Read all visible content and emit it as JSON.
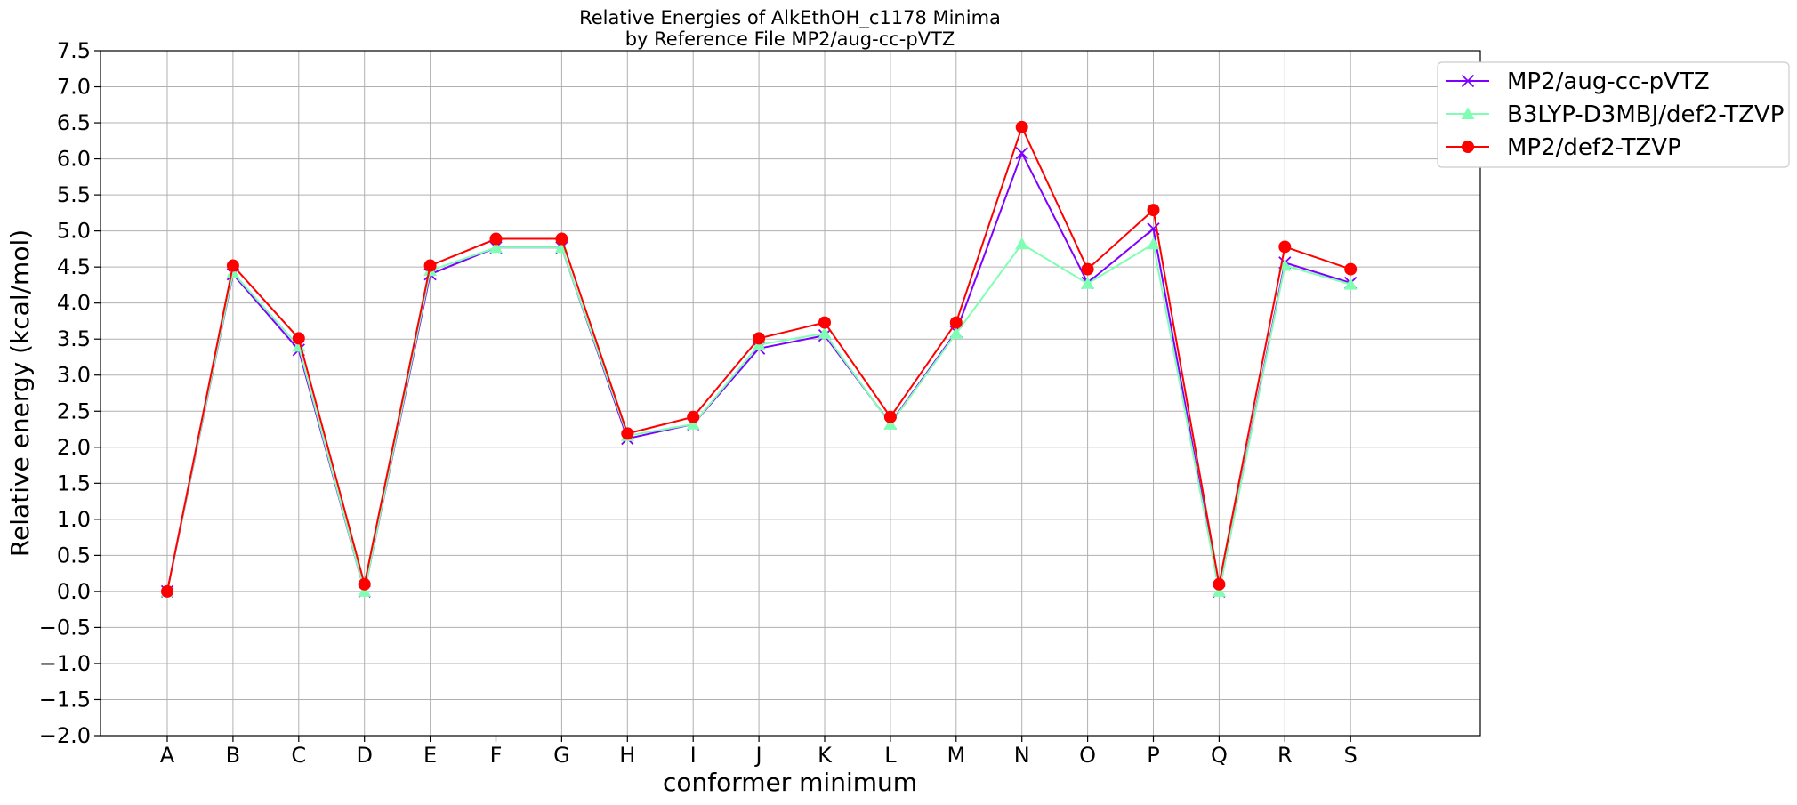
{
  "chart_data": {
    "type": "line",
    "title": "Relative Energies of AlkEthOH_c1178 Minima",
    "subtitle": "by Reference File MP2/aug-cc-pVTZ",
    "xlabel": "conformer minimum",
    "ylabel": "Relative energy (kcal/mol)",
    "categories": [
      "A",
      "B",
      "C",
      "D",
      "E",
      "F",
      "G",
      "H",
      "I",
      "J",
      "K",
      "L",
      "M",
      "N",
      "O",
      "P",
      "Q",
      "R",
      "S"
    ],
    "ylim": [
      -2.0,
      7.5
    ],
    "yticks": [
      "7.5",
      "7.0",
      "6.5",
      "6.0",
      "5.5",
      "5.0",
      "4.5",
      "4.0",
      "3.5",
      "3.0",
      "2.5",
      "2.0",
      "1.5",
      "1.0",
      "0.5",
      "0.0",
      "−0.5",
      "−1.0",
      "−1.5",
      "−2.0"
    ],
    "grid": true,
    "legend_position": "top-right",
    "series": [
      {
        "name": "MP2/aug-cc-pVTZ",
        "color": "#7f00ff",
        "marker": "x",
        "values": [
          0.0,
          4.4,
          3.35,
          0.0,
          4.4,
          4.77,
          4.77,
          2.12,
          2.32,
          3.37,
          3.55,
          2.33,
          3.6,
          6.08,
          4.28,
          5.03,
          0.0,
          4.56,
          4.28
        ]
      },
      {
        "name": "B3LYP-D3MBJ/def2-TZVP",
        "color": "#80ffb4",
        "marker": "triangle",
        "values": [
          0.0,
          4.42,
          3.4,
          0.0,
          4.45,
          4.77,
          4.77,
          2.16,
          2.32,
          3.42,
          3.58,
          2.32,
          3.58,
          4.82,
          4.27,
          4.82,
          0.0,
          4.52,
          4.26
        ]
      },
      {
        "name": "MP2/def2-TZVP",
        "color": "#ff0000",
        "marker": "circle",
        "values": [
          0.0,
          4.52,
          3.51,
          0.1,
          4.52,
          4.89,
          4.89,
          2.19,
          2.42,
          3.51,
          3.73,
          2.42,
          3.73,
          6.44,
          4.47,
          5.29,
          0.1,
          4.78,
          4.47
        ]
      }
    ]
  }
}
